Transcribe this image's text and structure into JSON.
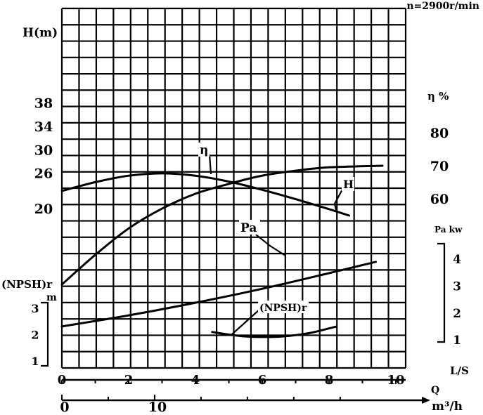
{
  "chart_data": {
    "type": "line",
    "speed_label": "n=2900r/min",
    "axes": {
      "head": {
        "label": "H(m)",
        "ticks": [
          20,
          26,
          30,
          34,
          38
        ]
      },
      "efficiency": {
        "label": "η %",
        "ticks": [
          60,
          70,
          80
        ]
      },
      "power": {
        "label": "Pa  kw",
        "ticks": [
          1,
          2,
          3,
          4
        ]
      },
      "npsh": {
        "label": "(NPSH)r",
        "unit": "m",
        "ticks": [
          1,
          2,
          3
        ]
      },
      "flow_ls": {
        "label": "L/S",
        "ticks": [
          0,
          2,
          4,
          6,
          8,
          10
        ]
      },
      "flow_m3h": {
        "label": "Q",
        "unit": "m³/h",
        "ticks": [
          0,
          10
        ]
      }
    },
    "series": [
      {
        "name": "H",
        "x": [
          0,
          1,
          2,
          3,
          4,
          5,
          6,
          7,
          8,
          8.6
        ],
        "y": [
          23,
          24.5,
          25.6,
          26.0,
          25.6,
          24.6,
          23.2,
          21.6,
          19.9,
          18.8
        ]
      },
      {
        "name": "η",
        "x": [
          0,
          1,
          2,
          3,
          4,
          5,
          6,
          7,
          8,
          9.6
        ],
        "y": [
          34,
          43,
          51,
          57,
          61.5,
          64.5,
          67,
          68.5,
          69.5,
          70
        ]
      },
      {
        "name": "Pa",
        "x": [
          0,
          2,
          4,
          6,
          8,
          9.4
        ],
        "y": [
          1.5,
          1.91,
          2.38,
          2.9,
          3.48,
          3.9
        ]
      },
      {
        "name": "(NPSH)r",
        "x": [
          4.5,
          5,
          5.5,
          6,
          6.5,
          7,
          7.5,
          8.2
        ],
        "y": [
          2.1,
          2.0,
          1.93,
          1.91,
          1.92,
          1.98,
          2.08,
          2.3
        ]
      }
    ],
    "annotations": [
      "η",
      "H",
      "Pa",
      "(NPSH)r"
    ]
  }
}
